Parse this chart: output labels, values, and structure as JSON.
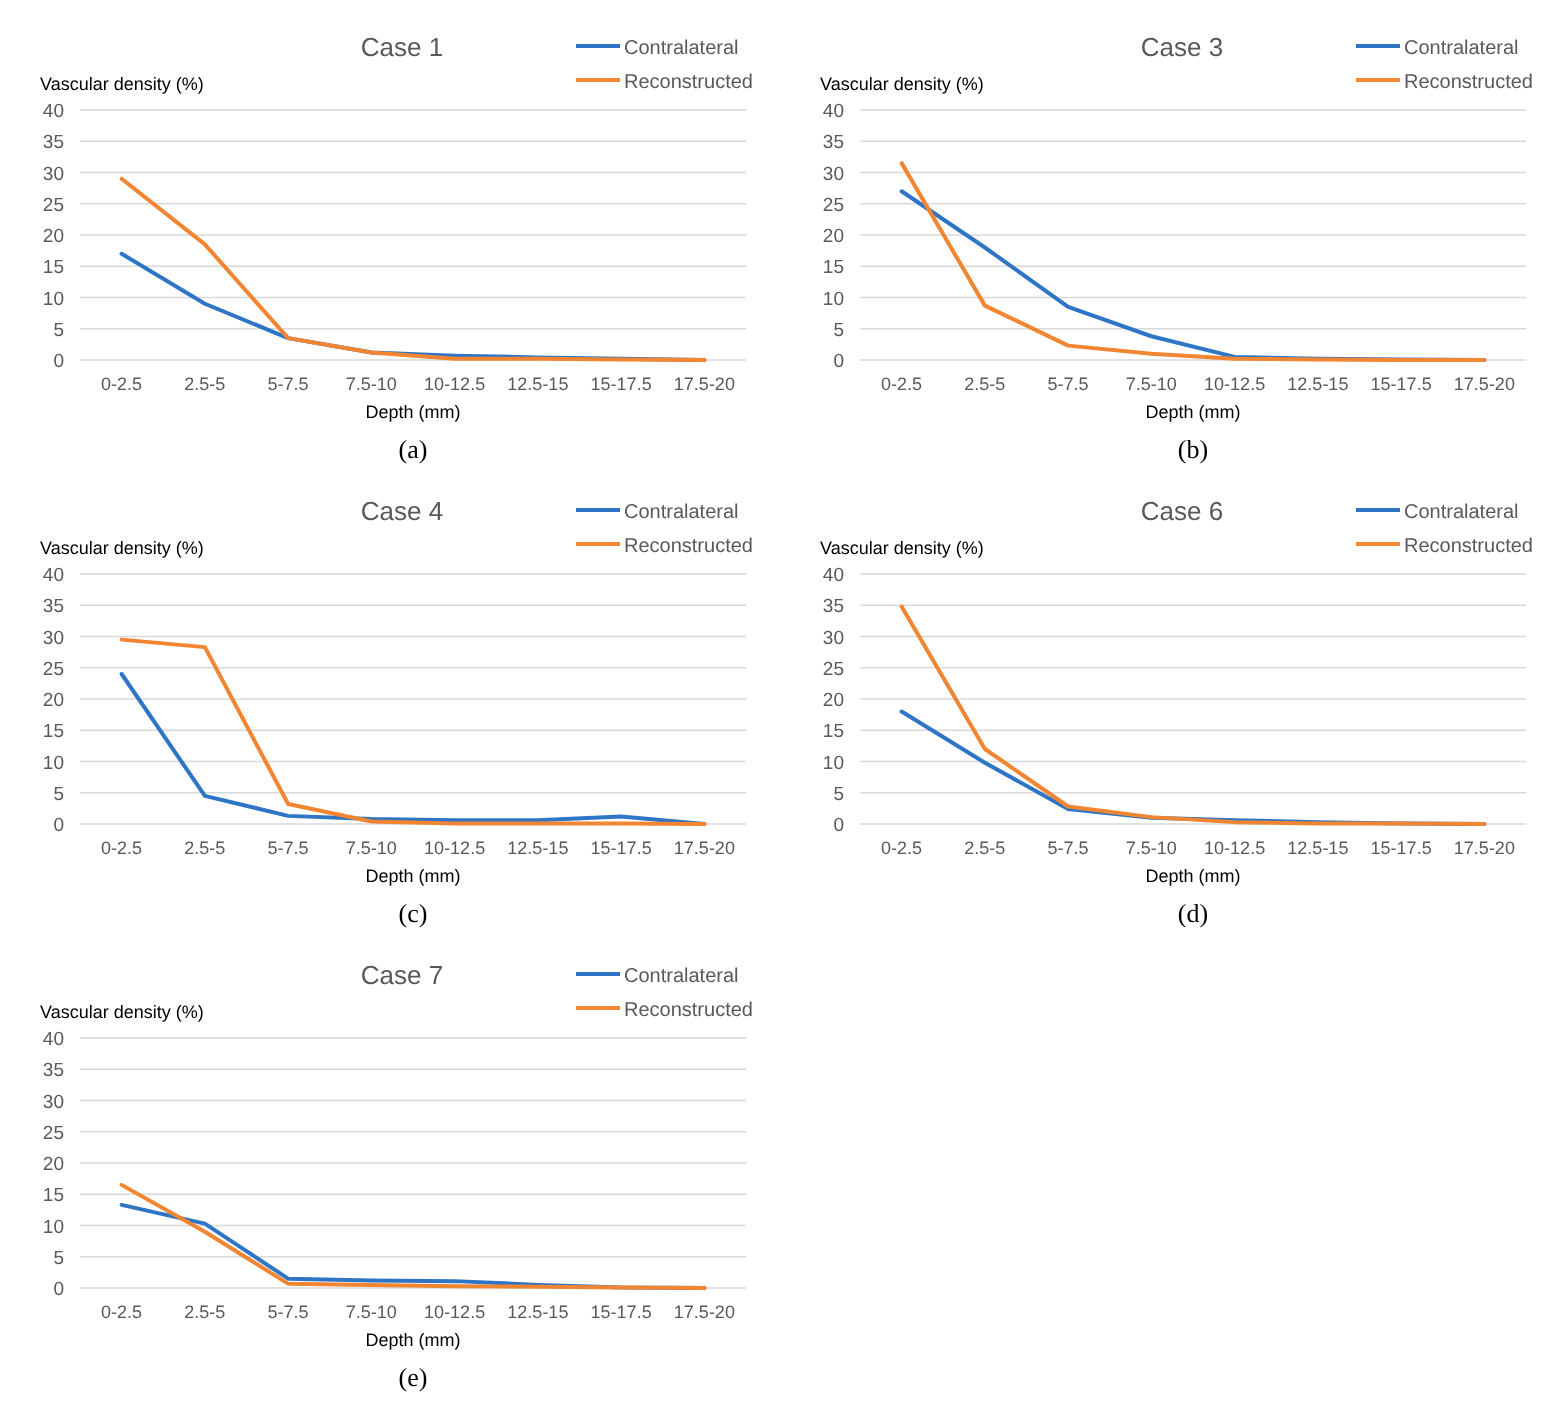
{
  "chart_data": [
    {
      "type": "line",
      "title": "Case 1",
      "ylabel": "Vascular density (%)",
      "xlabel": "Depth (mm)",
      "annotations": [
        "(a)"
      ],
      "categories": [
        "0-2.5",
        "2.5-5",
        "5-7.5",
        "7.5-10",
        "10-12.5",
        "12.5-15",
        "15-17.5",
        "17.5-20"
      ],
      "ylim": [
        0,
        40
      ],
      "yticks": [
        0,
        5,
        10,
        15,
        20,
        25,
        30,
        35,
        40
      ],
      "grid": "y",
      "legend": "top right",
      "series": [
        {
          "name": "Contralateral",
          "color": "#2e75c6",
          "values": [
            17,
            9,
            3.5,
            1.2,
            0.7,
            0.4,
            0.2,
            0
          ]
        },
        {
          "name": "Reconstructed",
          "color": "#f28531",
          "values": [
            29,
            18.5,
            3.5,
            1.2,
            0.2,
            0.2,
            0.1,
            0
          ]
        }
      ]
    },
    {
      "type": "line",
      "title": "Case 3",
      "ylabel": "Vascular density (%)",
      "xlabel": "Depth (mm)",
      "annotations": [
        "(b)"
      ],
      "categories": [
        "0-2.5",
        "2.5-5",
        "5-7.5",
        "7.5-10",
        "10-12.5",
        "12.5-15",
        "15-17.5",
        "17.5-20"
      ],
      "ylim": [
        0,
        40
      ],
      "yticks": [
        0,
        5,
        10,
        15,
        20,
        25,
        30,
        35,
        40
      ],
      "grid": "y",
      "legend": "top right",
      "series": [
        {
          "name": "Contralateral",
          "color": "#2e75c6",
          "values": [
            27,
            18,
            8.5,
            3.8,
            0.5,
            0.2,
            0.1,
            0
          ]
        },
        {
          "name": "Reconstructed",
          "color": "#f28531",
          "values": [
            31.5,
            8.7,
            2.3,
            1,
            0.2,
            0.1,
            0,
            0
          ]
        }
      ]
    },
    {
      "type": "line",
      "title": "Case 4",
      "ylabel": "Vascular density (%)",
      "xlabel": "Depth (mm)",
      "annotations": [
        "(c)"
      ],
      "categories": [
        "0-2.5",
        "2.5-5",
        "5-7.5",
        "7.5-10",
        "10-12.5",
        "12.5-15",
        "15-17.5",
        "17.5-20"
      ],
      "ylim": [
        0,
        40
      ],
      "yticks": [
        0,
        5,
        10,
        15,
        20,
        25,
        30,
        35,
        40
      ],
      "grid": "y",
      "legend": "top right",
      "series": [
        {
          "name": "Contralateral",
          "color": "#2e75c6",
          "values": [
            24,
            4.5,
            1.3,
            0.8,
            0.6,
            0.6,
            1.2,
            0
          ]
        },
        {
          "name": "Reconstructed",
          "color": "#f28531",
          "values": [
            29.5,
            28.3,
            3.2,
            0.4,
            0.1,
            0.1,
            0.1,
            0
          ]
        }
      ]
    },
    {
      "type": "line",
      "title": "Case 6",
      "ylabel": "Vascular density (%)",
      "xlabel": "Depth (mm)",
      "annotations": [
        "(d)"
      ],
      "categories": [
        "0-2.5",
        "2.5-5",
        "5-7.5",
        "7.5-10",
        "10-12.5",
        "12.5-15",
        "15-17.5",
        "17.5-20"
      ],
      "ylim": [
        0,
        40
      ],
      "yticks": [
        0,
        5,
        10,
        15,
        20,
        25,
        30,
        35,
        40
      ],
      "grid": "y",
      "legend": "top right",
      "series": [
        {
          "name": "Contralateral",
          "color": "#2e75c6",
          "values": [
            18,
            9.8,
            2.4,
            1,
            0.6,
            0.3,
            0.1,
            0
          ]
        },
        {
          "name": "Reconstructed",
          "color": "#f28531",
          "values": [
            34.8,
            12,
            2.8,
            1.1,
            0.3,
            0.1,
            0.1,
            0
          ]
        }
      ]
    },
    {
      "type": "line",
      "title": "Case 7",
      "ylabel": "Vascular density (%)",
      "xlabel": "Depth (mm)",
      "annotations": [
        "(e)"
      ],
      "categories": [
        "0-2.5",
        "2.5-5",
        "5-7.5",
        "7.5-10",
        "10-12.5",
        "12.5-15",
        "15-17.5",
        "17.5-20"
      ],
      "ylim": [
        0,
        40
      ],
      "yticks": [
        0,
        5,
        10,
        15,
        20,
        25,
        30,
        35,
        40
      ],
      "grid": "y",
      "legend": "top right",
      "series": [
        {
          "name": "Contralateral",
          "color": "#2e75c6",
          "values": [
            13.3,
            10.3,
            1.5,
            1.2,
            1.1,
            0.5,
            0.1,
            0
          ]
        },
        {
          "name": "Reconstructed",
          "color": "#f28531",
          "values": [
            16.5,
            9,
            0.7,
            0.5,
            0.3,
            0.2,
            0.1,
            0
          ]
        }
      ]
    }
  ]
}
